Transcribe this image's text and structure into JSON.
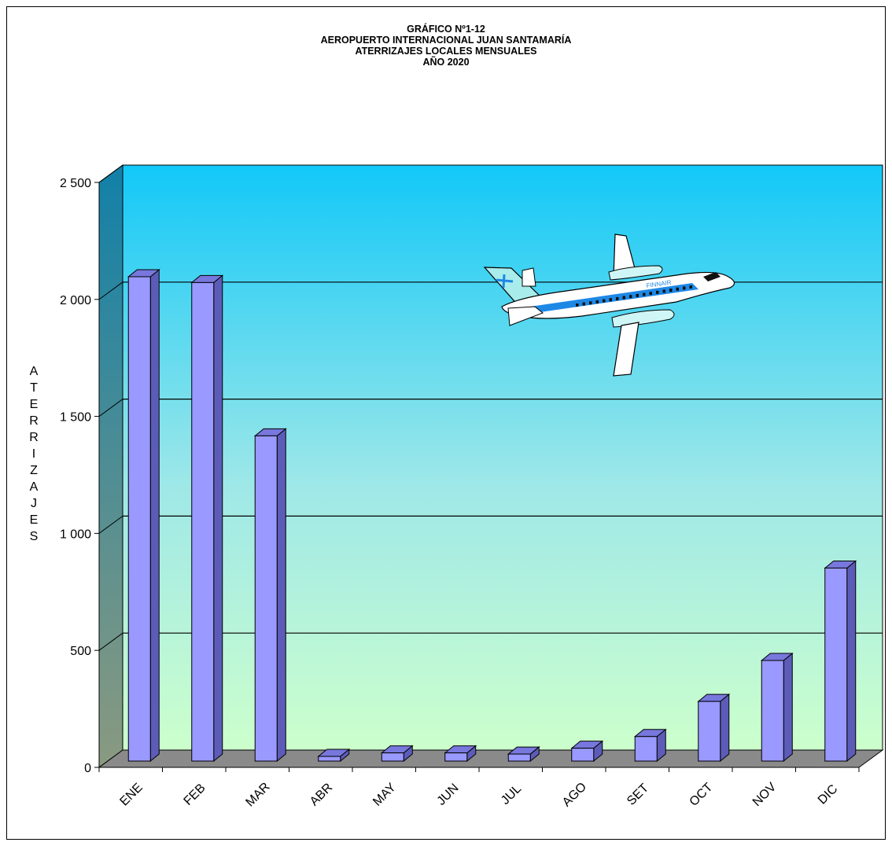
{
  "chart_data": {
    "type": "bar",
    "title_lines": [
      "GRÁFICO Nº1-12",
      "AEROPUERTO INTERNACIONAL JUAN SANTAMARÍA",
      "ATERRIZAJES LOCALES MENSUALES",
      "AÑO 2020"
    ],
    "ylabel": "ATERRIZAJES",
    "xlabel": "",
    "categories": [
      "ENE",
      "FEB",
      "MAR",
      "ABR",
      "MAY",
      "JUN",
      "JUL",
      "AGO",
      "SET",
      "OCT",
      "NOV",
      "DIC"
    ],
    "values": [
      2070,
      2045,
      1390,
      20,
      35,
      35,
      30,
      55,
      105,
      255,
      430,
      825
    ],
    "ylim": [
      0,
      2500
    ],
    "yticks": [
      0,
      500,
      1000,
      1500,
      2000,
      2500
    ],
    "ytick_labels": [
      "0",
      "500",
      "1 000",
      "1 500",
      "2 000",
      "2 500"
    ],
    "grid": true,
    "style": "3d-column",
    "colors": {
      "bar_front": "#9999ff",
      "bar_side": "#5c5cb8",
      "bar_top": "#7777dd",
      "floor": "#8a8a8a",
      "wall_top": "#12c8f8",
      "wall_bottom": "#ccffcc"
    },
    "decoration": "airplane-illustration",
    "airplane_text": "FINNAIR"
  }
}
